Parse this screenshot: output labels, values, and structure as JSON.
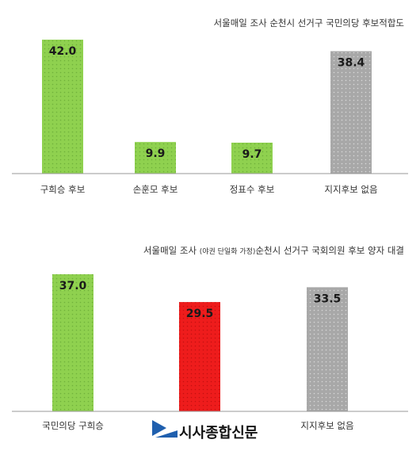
{
  "chart_data": [
    {
      "type": "bar",
      "title": "서울매일 조사 순천시 선거구 국민의당 후보적합도",
      "categories": [
        "구희승 후보",
        "손훈모 후보",
        "정표수 후보",
        "지지후보 없음"
      ],
      "values": [
        42.0,
        9.9,
        9.7,
        38.4
      ],
      "value_labels": [
        "42.0",
        "9.9",
        "9.7",
        "38.4"
      ],
      "colors": [
        "#8fd14f",
        "#8fd14f",
        "#8fd14f",
        "#a6a6a6"
      ],
      "ylim": [
        0,
        45
      ],
      "grid": false,
      "legend": false
    },
    {
      "type": "bar",
      "title_prefix": "서울매일 조사 ",
      "title_note": "(야권 단일화 가정)",
      "title_suffix": "순천시 선거구 국회의원 후보 양자 대결",
      "categories": [
        "국민의당 구희승",
        "",
        "지지후보 없음"
      ],
      "values": [
        37.0,
        29.5,
        33.5
      ],
      "value_labels": [
        "37.0",
        "29.5",
        "33.5"
      ],
      "colors": [
        "#8fd14f",
        "#ee1c1c",
        "#a6a6a6"
      ],
      "ylim": [
        0,
        40
      ],
      "grid": false,
      "legend": false
    }
  ],
  "logo": {
    "text": "시사종합신문",
    "mark_color": "#1f5fae",
    "icon": "newspaper-logo-icon"
  }
}
